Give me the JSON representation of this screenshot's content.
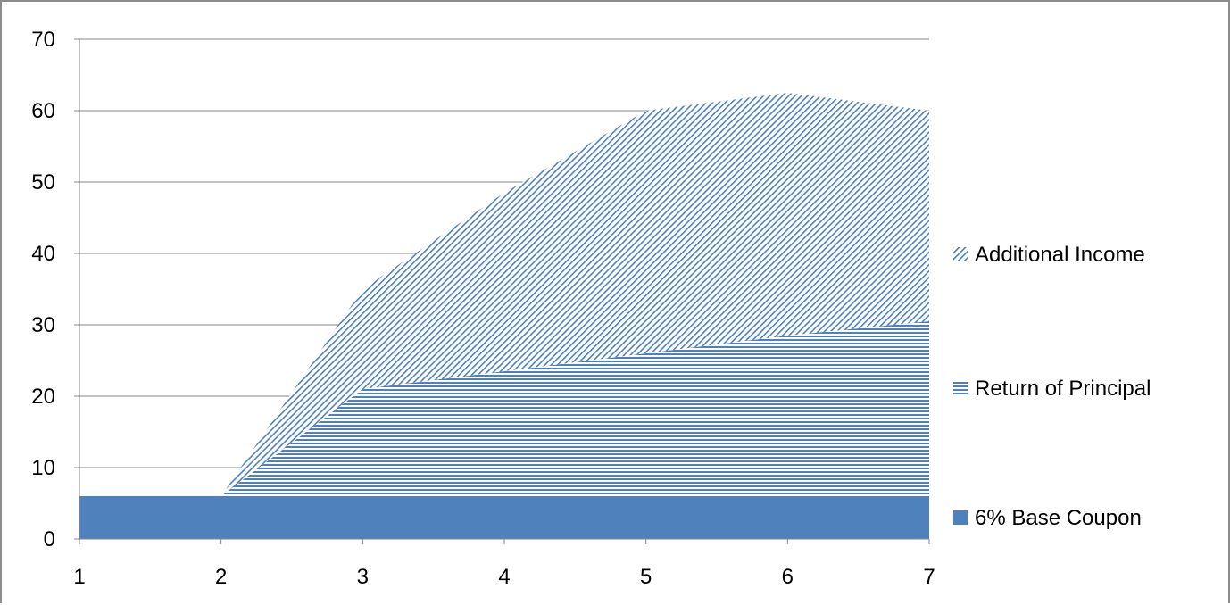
{
  "chart_data": {
    "type": "area",
    "stacked": true,
    "title": "",
    "xlabel": "",
    "ylabel": "",
    "x": [
      1,
      2,
      3,
      4,
      5,
      6,
      7
    ],
    "ylim": [
      0,
      70
    ],
    "yticks": [
      0,
      10,
      20,
      30,
      40,
      50,
      60,
      70
    ],
    "xticks": [
      1,
      2,
      3,
      4,
      5,
      6,
      7
    ],
    "grid": "horizontal",
    "legend_position": "right",
    "series": [
      {
        "name": "6% Base Coupon",
        "values": [
          6,
          6,
          6,
          6,
          6,
          6,
          6
        ],
        "fill": "solid",
        "color": "#4f81bd"
      },
      {
        "name": "Return of Principal",
        "values": [
          0,
          0,
          15,
          17.5,
          20,
          22.5,
          24.5
        ],
        "fill": "horizontal-lines",
        "color": "#4f81bd"
      },
      {
        "name": "Additional Income",
        "values": [
          0,
          0,
          14,
          25,
          34,
          34,
          29.5
        ],
        "fill": "diagonal-lines",
        "color": "#4f81bd"
      }
    ]
  }
}
